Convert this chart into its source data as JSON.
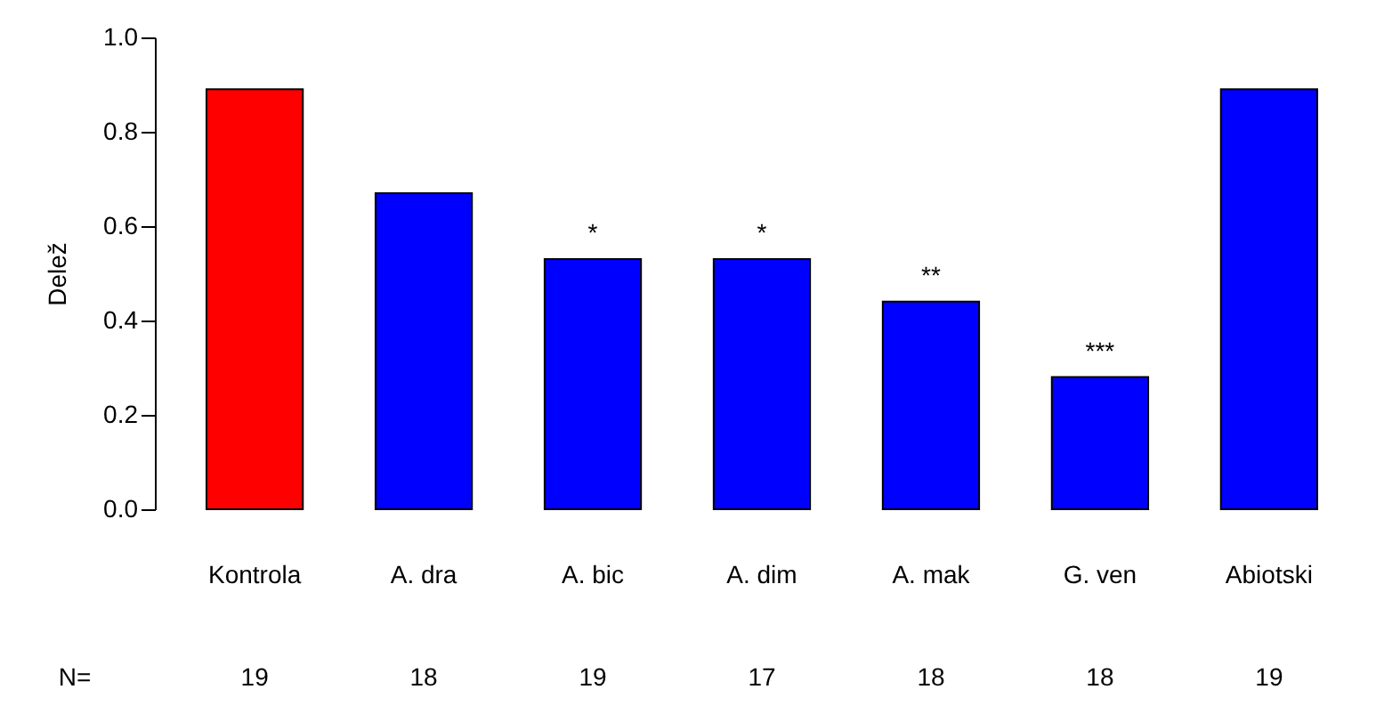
{
  "chart_data": {
    "type": "bar",
    "ylabel": "Delež",
    "categories": [
      "Kontrola",
      "A. dra",
      "A. bic",
      "A. dim",
      "A. mak",
      "G. ven",
      "Abiotski"
    ],
    "values": [
      0.89,
      0.67,
      0.53,
      0.53,
      0.44,
      0.28,
      0.89
    ],
    "colors": [
      "#ff0000",
      "#0000ff",
      "#0000ff",
      "#0000ff",
      "#0000ff",
      "#0000ff",
      "#0000ff"
    ],
    "ylim": [
      0,
      1.0
    ],
    "yticks": [
      {
        "value": 0,
        "label": "0.0"
      },
      {
        "value": 0.2,
        "label": "0.2"
      },
      {
        "value": 0.4,
        "label": "0.4"
      },
      {
        "value": 0.6,
        "label": "0.6"
      },
      {
        "value": 0.8,
        "label": "0.8"
      },
      {
        "value": 1.0,
        "label": "1.0"
      }
    ],
    "grid": false,
    "annotations": [
      {
        "text": "*",
        "x": "A. bic",
        "y": 0.53
      },
      {
        "text": "*",
        "x": "A. dim",
        "y": 0.53
      },
      {
        "text": "**",
        "x": "A. mak",
        "y": 0.44
      },
      {
        "text": "***",
        "x": "G. ven",
        "y": 0.28
      },
      "N=",
      "19",
      "18",
      "19",
      "17",
      "18",
      "18",
      "19"
    ]
  }
}
